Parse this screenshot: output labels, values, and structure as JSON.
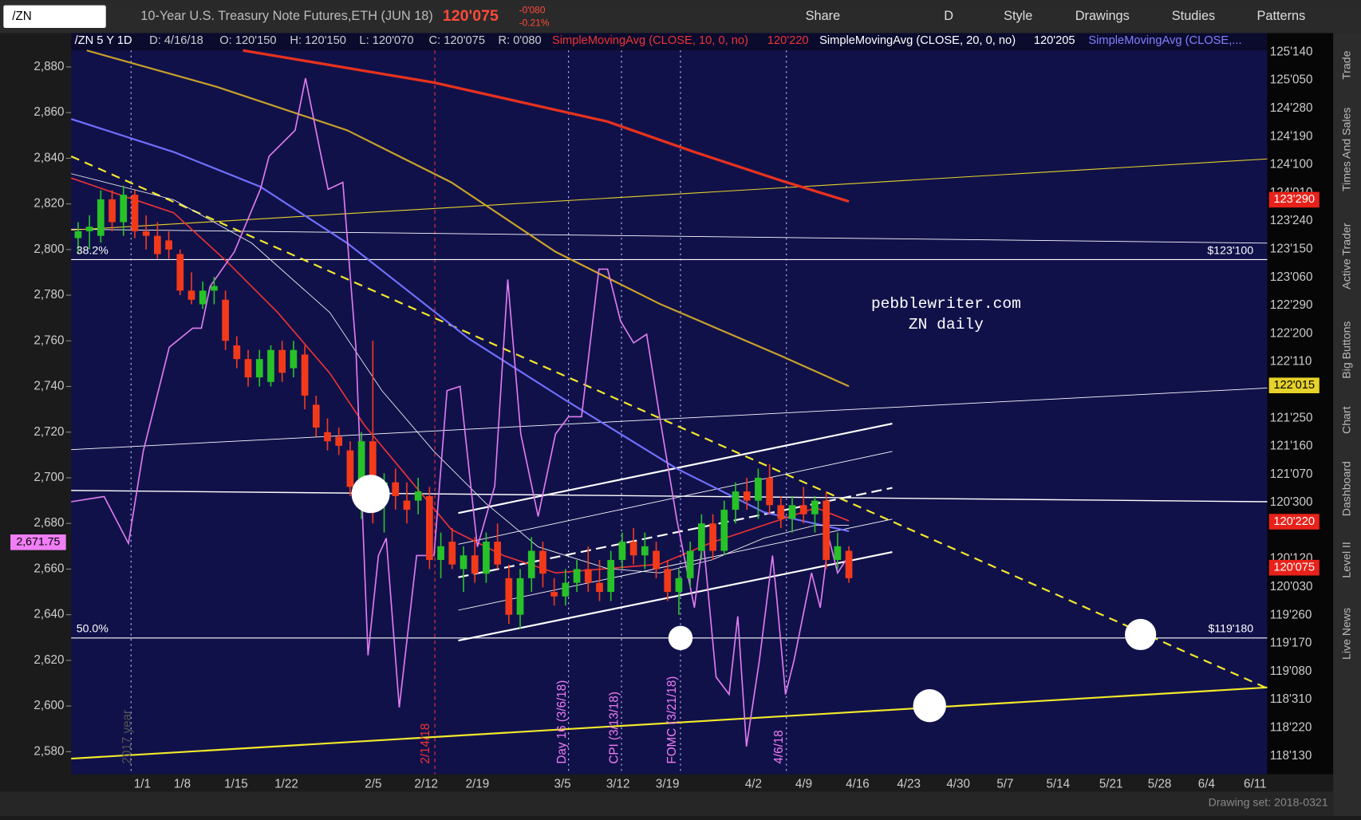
{
  "toolbar": {
    "symbol": "/ZN",
    "description": "10-Year U.S. Treasury Note Futures,ETH (JUN 18)",
    "last": "120'075",
    "change": "-0'080",
    "change_pct": "-0.21%",
    "buttons": [
      "Share",
      "D",
      "Style",
      "Drawings",
      "Studies",
      "Patterns"
    ]
  },
  "legend": [
    "/ZN 5 Y 1D",
    "D: 4/16/18",
    "O: 120'150",
    "H: 120'150",
    "L: 120'070",
    "C: 120'075",
    "R: 0'080",
    "SimpleMovingAvg (CLOSE, 10, 0, no)",
    "120'220",
    "SimpleMovingAvg (CLOSE, 20, 0, no)",
    "120'205",
    "SimpleMovingAvg (CLOSE,..."
  ],
  "chart": {
    "left_ticks": [
      {
        "value": 2580,
        "label": "2,580"
      },
      {
        "value": 2600,
        "label": "2,600"
      },
      {
        "value": 2620,
        "label": "2,620"
      },
      {
        "value": 2640,
        "label": "2,640"
      },
      {
        "value": 2660,
        "label": "2,660"
      },
      {
        "value": 2680,
        "label": "2,680"
      },
      {
        "value": 2700,
        "label": "2,700"
      },
      {
        "value": 2720,
        "label": "2,720"
      },
      {
        "value": 2740,
        "label": "2,740"
      },
      {
        "value": 2760,
        "label": "2,760"
      },
      {
        "value": 2780,
        "label": "2,780"
      },
      {
        "value": 2800,
        "label": "2,800"
      },
      {
        "value": 2820,
        "label": "2,820"
      },
      {
        "value": 2840,
        "label": "2,840"
      },
      {
        "value": 2860,
        "label": "2,860"
      },
      {
        "value": 2880,
        "label": "2,880"
      }
    ],
    "left_range": [
      2580,
      2880
    ],
    "left_marker": {
      "value": 2671.75,
      "label": "2,671.75"
    },
    "right_ticks": [
      "125'140",
      "125'050",
      "124'280",
      "124'190",
      "124'100",
      "124'010",
      "123'240",
      "123'150",
      "123'060",
      "122'290",
      "122'200",
      "122'110",
      null,
      "121'250",
      "121'160",
      "121'070",
      "120'300",
      null,
      "120'120",
      "120'030",
      "119'260",
      "119'170",
      "119'080",
      "118'310",
      "118'220",
      "118'130"
    ],
    "right_markers": [
      "123'290",
      "122'015",
      "120'220",
      "120'075"
    ],
    "x_labels": [
      "1/1",
      "1/8",
      "1/15",
      "1/22",
      "2/5",
      "2/12",
      "2/19",
      "3/5",
      "3/12",
      "3/19",
      "4/2",
      "4/9",
      "4/16",
      "4/23",
      "4/30",
      "5/7",
      "5/14",
      "5/21",
      "5/28",
      "6/4",
      "6/11"
    ],
    "annotations": {
      "fib_382": "38.2%",
      "level_high": "$123'100",
      "fib_50": "50.0%",
      "level_low": "$119'180",
      "site": "pebblewriter.com",
      "subtitle": "ZN daily"
    },
    "events": [
      "2017 year",
      "2/14/18",
      "Day 16 (3/6/18)",
      "CPI (3/13/18)",
      "FOMC (3/21/18)",
      "4/6/18"
    ],
    "candles": [
      [
        2805,
        2812,
        2798,
        2808
      ],
      [
        2808,
        2815,
        2800,
        2810
      ],
      [
        2806,
        2826,
        2803,
        2822
      ],
      [
        2822,
        2826,
        2808,
        2812
      ],
      [
        2812,
        2828,
        2806,
        2824
      ],
      [
        2824,
        2826,
        2805,
        2808
      ],
      [
        2808,
        2815,
        2800,
        2806
      ],
      [
        2806,
        2812,
        2796,
        2798
      ],
      [
        2804,
        2808,
        2796,
        2800
      ],
      [
        2798,
        2800,
        2780,
        2782
      ],
      [
        2782,
        2790,
        2776,
        2778
      ],
      [
        2776,
        2786,
        2774,
        2782
      ],
      [
        2782,
        2788,
        2776,
        2784
      ],
      [
        2778,
        2782,
        2756,
        2760
      ],
      [
        2758,
        2762,
        2748,
        2752
      ],
      [
        2752,
        2756,
        2740,
        2744
      ],
      [
        2744,
        2756,
        2740,
        2752
      ],
      [
        2742,
        2758,
        2740,
        2756
      ],
      [
        2756,
        2760,
        2742,
        2746
      ],
      [
        2748,
        2760,
        2744,
        2756
      ],
      [
        2754,
        2758,
        2730,
        2736
      ],
      [
        2732,
        2736,
        2718,
        2722
      ],
      [
        2720,
        2726,
        2712,
        2716
      ],
      [
        2718,
        2722,
        2710,
        2714
      ],
      [
        2712,
        2716,
        2692,
        2696
      ],
      [
        2696,
        2720,
        2682,
        2716
      ],
      [
        2716,
        2760,
        2680,
        2690
      ],
      [
        2690,
        2702,
        2676,
        2698
      ],
      [
        2698,
        2704,
        2686,
        2692
      ],
      [
        2690,
        2698,
        2680,
        2686
      ],
      [
        2690,
        2700,
        2684,
        2694
      ],
      [
        2692,
        2696,
        2660,
        2664
      ],
      [
        2664,
        2676,
        2656,
        2670
      ],
      [
        2672,
        2678,
        2660,
        2662
      ],
      [
        2660,
        2670,
        2650,
        2666
      ],
      [
        2666,
        2674,
        2654,
        2658
      ],
      [
        2658,
        2676,
        2654,
        2672
      ],
      [
        2672,
        2680,
        2660,
        2662
      ],
      [
        2656,
        2662,
        2636,
        2640
      ],
      [
        2640,
        2660,
        2634,
        2656
      ],
      [
        2656,
        2674,
        2650,
        2668
      ],
      [
        2668,
        2672,
        2652,
        2658
      ],
      [
        2650,
        2656,
        2644,
        2648
      ],
      [
        2648,
        2660,
        2644,
        2654
      ],
      [
        2654,
        2664,
        2650,
        2660
      ],
      [
        2660,
        2670,
        2650,
        2654
      ],
      [
        2654,
        2664,
        2646,
        2650
      ],
      [
        2650,
        2668,
        2646,
        2664
      ],
      [
        2664,
        2676,
        2660,
        2672
      ],
      [
        2672,
        2678,
        2662,
        2666
      ],
      [
        2666,
        2676,
        2660,
        2670
      ],
      [
        2668,
        2672,
        2656,
        2660
      ],
      [
        2660,
        2664,
        2646,
        2650
      ],
      [
        2650,
        2660,
        2640,
        2656
      ],
      [
        2656,
        2672,
        2652,
        2668
      ],
      [
        2668,
        2684,
        2664,
        2680
      ],
      [
        2680,
        2684,
        2664,
        2668
      ],
      [
        2668,
        2690,
        2666,
        2686
      ],
      [
        2686,
        2698,
        2680,
        2694
      ],
      [
        2694,
        2700,
        2686,
        2690
      ],
      [
        2690,
        2704,
        2682,
        2700
      ],
      [
        2700,
        2706,
        2684,
        2688
      ],
      [
        2688,
        2692,
        2678,
        2682
      ],
      [
        2682,
        2692,
        2676,
        2688
      ],
      [
        2688,
        2696,
        2680,
        2684
      ],
      [
        2684,
        2692,
        2676,
        2690
      ],
      [
        2690,
        2694,
        2660,
        2664
      ],
      [
        2664,
        2676,
        2660,
        2670
      ],
      [
        2668,
        2670,
        2654,
        2656
      ]
    ]
  },
  "side_tabs": [
    "Trade",
    "Times And Sales",
    "Active Trader",
    "Big Buttons",
    "Chart",
    "Dashboard",
    "Level II",
    "Live News"
  ],
  "status": "Drawing set: 2018-0321"
}
